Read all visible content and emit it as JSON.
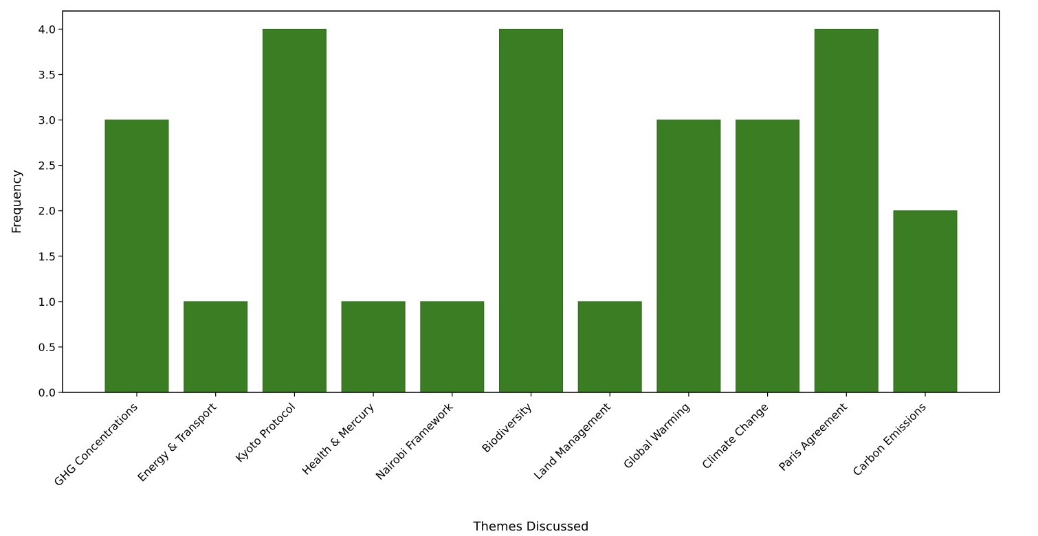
{
  "chart_data": {
    "type": "bar",
    "title": "",
    "xlabel": "Themes Discussed",
    "ylabel": "Frequency",
    "categories": [
      "GHG Concentrations",
      "Energy & Transport",
      "Kyoto Protocol",
      "Health & Mercury",
      "Nairobi Framework",
      "Biodiversity",
      "Land Management",
      "Global Warming",
      "Climate Change",
      "Paris Agreement",
      "Carbon Emissions"
    ],
    "values": [
      3,
      1,
      4,
      1,
      1,
      4,
      1,
      3,
      3,
      4,
      2
    ],
    "ylim": [
      0,
      4.2
    ],
    "yticks": [
      "0.0",
      "0.5",
      "1.0",
      "1.5",
      "2.0",
      "2.5",
      "3.0",
      "3.5",
      "4.0"
    ],
    "bar_color": "#3a7d23",
    "grid": false,
    "legend": "none"
  }
}
